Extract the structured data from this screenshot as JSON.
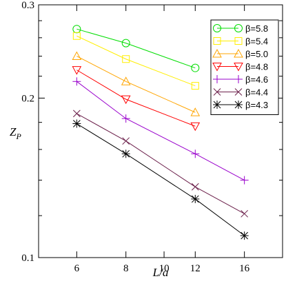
{
  "chart_data": {
    "type": "line",
    "xlabel": "L/a",
    "ylabel": "Z",
    "ylabel_sub": "P",
    "xscale": "log",
    "yscale": "log",
    "xlim": [
      4.8,
      20
    ],
    "ylim": [
      0.1,
      0.3
    ],
    "xticks": [
      6,
      8,
      10,
      12,
      16
    ],
    "xtick_labels": [
      "6",
      "8",
      "10",
      "12",
      "16"
    ],
    "yticks_major": [
      0.1,
      0.2,
      0.3
    ],
    "ytick_labels": [
      "0.1",
      "0.2",
      "0.3"
    ],
    "yticks_minor": [
      0.12,
      0.14,
      0.16,
      0.18,
      0.22,
      0.24,
      0.26,
      0.28
    ],
    "grid": false,
    "legend_position": "top-right",
    "series": [
      {
        "name": "β=5.8",
        "color": "#00dd00",
        "marker": "circle",
        "x": [
          6,
          8,
          12
        ],
        "y": [
          0.27,
          0.254,
          0.228
        ]
      },
      {
        "name": "β=5.4",
        "color": "#ffee00",
        "marker": "square",
        "x": [
          6,
          8,
          12
        ],
        "y": [
          0.262,
          0.237,
          0.211
        ]
      },
      {
        "name": "β=5.0",
        "color": "#ffa500",
        "marker": "triangle-up",
        "x": [
          6,
          8,
          12
        ],
        "y": [
          0.24,
          0.215,
          0.188
        ]
      },
      {
        "name": "β=4.8",
        "color": "#ff0000",
        "marker": "triangle-down",
        "x": [
          6,
          8,
          12
        ],
        "y": [
          0.226,
          0.199,
          0.177
        ]
      },
      {
        "name": "β=4.6",
        "color": "#9900cc",
        "marker": "plus",
        "x": [
          6,
          8,
          12,
          16
        ],
        "y": [
          0.215,
          0.183,
          0.157,
          0.14
        ]
      },
      {
        "name": "β=4.4",
        "color": "#6b1f4a",
        "marker": "x",
        "x": [
          6,
          8,
          12,
          16
        ],
        "y": [
          0.187,
          0.166,
          0.136,
          0.121
        ]
      },
      {
        "name": "β=4.3",
        "color": "#000000",
        "marker": "asterisk",
        "x": [
          6,
          8,
          12,
          16
        ],
        "y": [
          0.179,
          0.157,
          0.129,
          0.11
        ]
      }
    ]
  }
}
